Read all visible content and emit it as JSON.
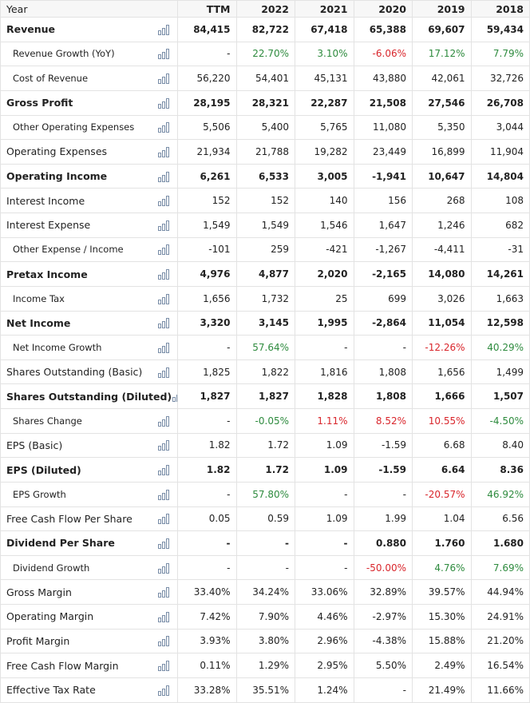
{
  "table": {
    "header": [
      "Year",
      "TTM",
      "2022",
      "2021",
      "2020",
      "2019",
      "2018"
    ],
    "rows": [
      {
        "label": "Revenue",
        "bold": true,
        "cells": [
          "84,415",
          "82,722",
          "67,418",
          "65,388",
          "69,607",
          "59,434"
        ]
      },
      {
        "label": "Revenue Growth (YoY)",
        "indent": true,
        "cells": [
          "-",
          "22.70%",
          "3.10%",
          "-6.06%",
          "17.12%",
          "7.79%"
        ],
        "colors": [
          null,
          "#2e8b3e",
          "#2e8b3e",
          "#d9262c",
          "#2e8b3e",
          "#2e8b3e"
        ]
      },
      {
        "label": "Cost of Revenue",
        "indent": true,
        "cells": [
          "56,220",
          "54,401",
          "45,131",
          "43,880",
          "42,061",
          "32,726"
        ]
      },
      {
        "label": "Gross Profit",
        "bold": true,
        "cells": [
          "28,195",
          "28,321",
          "22,287",
          "21,508",
          "27,546",
          "26,708"
        ]
      },
      {
        "label": "Other Operating Expenses",
        "indent": true,
        "cells": [
          "5,506",
          "5,400",
          "5,765",
          "11,080",
          "5,350",
          "3,044"
        ]
      },
      {
        "label": "Operating Expenses",
        "cells": [
          "21,934",
          "21,788",
          "19,282",
          "23,449",
          "16,899",
          "11,904"
        ]
      },
      {
        "label": "Operating Income",
        "bold": true,
        "cells": [
          "6,261",
          "6,533",
          "3,005",
          "-1,941",
          "10,647",
          "14,804"
        ]
      },
      {
        "label": "Interest Income",
        "cells": [
          "152",
          "152",
          "140",
          "156",
          "268",
          "108"
        ]
      },
      {
        "label": "Interest Expense",
        "cells": [
          "1,549",
          "1,549",
          "1,546",
          "1,647",
          "1,246",
          "682"
        ]
      },
      {
        "label": "Other Expense / Income",
        "indent": true,
        "cells": [
          "-101",
          "259",
          "-421",
          "-1,267",
          "-4,411",
          "-31"
        ]
      },
      {
        "label": "Pretax Income",
        "bold": true,
        "cells": [
          "4,976",
          "4,877",
          "2,020",
          "-2,165",
          "14,080",
          "14,261"
        ]
      },
      {
        "label": "Income Tax",
        "indent": true,
        "cells": [
          "1,656",
          "1,732",
          "25",
          "699",
          "3,026",
          "1,663"
        ]
      },
      {
        "label": "Net Income",
        "bold": true,
        "cells": [
          "3,320",
          "3,145",
          "1,995",
          "-2,864",
          "11,054",
          "12,598"
        ]
      },
      {
        "label": "Net Income Growth",
        "indent": true,
        "cells": [
          "-",
          "57.64%",
          "-",
          "-",
          "-12.26%",
          "40.29%"
        ],
        "colors": [
          null,
          "#2e8b3e",
          null,
          null,
          "#d9262c",
          "#2e8b3e"
        ]
      },
      {
        "label": "Shares Outstanding (Basic)",
        "cells": [
          "1,825",
          "1,822",
          "1,816",
          "1,808",
          "1,656",
          "1,499"
        ]
      },
      {
        "label": "Shares Outstanding (Diluted)",
        "bold": true,
        "cells": [
          "1,827",
          "1,827",
          "1,828",
          "1,808",
          "1,666",
          "1,507"
        ]
      },
      {
        "label": "Shares Change",
        "indent": true,
        "cells": [
          "-",
          "-0.05%",
          "1.11%",
          "8.52%",
          "10.55%",
          "-4.50%"
        ],
        "colors": [
          null,
          "#2e8b3e",
          "#d9262c",
          "#d9262c",
          "#d9262c",
          "#2e8b3e"
        ]
      },
      {
        "label": "EPS (Basic)",
        "cells": [
          "1.82",
          "1.72",
          "1.09",
          "-1.59",
          "6.68",
          "8.40"
        ]
      },
      {
        "label": "EPS (Diluted)",
        "bold": true,
        "cells": [
          "1.82",
          "1.72",
          "1.09",
          "-1.59",
          "6.64",
          "8.36"
        ]
      },
      {
        "label": "EPS Growth",
        "indent": true,
        "cells": [
          "-",
          "57.80%",
          "-",
          "-",
          "-20.57%",
          "46.92%"
        ],
        "colors": [
          null,
          "#2e8b3e",
          null,
          null,
          "#d9262c",
          "#2e8b3e"
        ]
      },
      {
        "label": "Free Cash Flow Per Share",
        "cells": [
          "0.05",
          "0.59",
          "1.09",
          "1.99",
          "1.04",
          "6.56"
        ]
      },
      {
        "label": "Dividend Per Share",
        "bold": true,
        "cells": [
          "-",
          "-",
          "-",
          "0.880",
          "1.760",
          "1.680"
        ]
      },
      {
        "label": "Dividend Growth",
        "indent": true,
        "cells": [
          "-",
          "-",
          "-",
          "-50.00%",
          "4.76%",
          "7.69%"
        ],
        "colors": [
          null,
          null,
          null,
          "#d9262c",
          "#2e8b3e",
          "#2e8b3e"
        ]
      },
      {
        "label": "Gross Margin",
        "cells": [
          "33.40%",
          "34.24%",
          "33.06%",
          "32.89%",
          "39.57%",
          "44.94%"
        ]
      },
      {
        "label": "Operating Margin",
        "cells": [
          "7.42%",
          "7.90%",
          "4.46%",
          "-2.97%",
          "15.30%",
          "24.91%"
        ]
      },
      {
        "label": "Profit Margin",
        "cells": [
          "3.93%",
          "3.80%",
          "2.96%",
          "-4.38%",
          "15.88%",
          "21.20%"
        ]
      },
      {
        "label": "Free Cash Flow Margin",
        "cells": [
          "0.11%",
          "1.29%",
          "2.95%",
          "5.50%",
          "2.49%",
          "16.54%"
        ]
      },
      {
        "label": "Effective Tax Rate",
        "cells": [
          "33.28%",
          "35.51%",
          "1.24%",
          "-",
          "21.49%",
          "11.66%"
        ]
      }
    ]
  }
}
